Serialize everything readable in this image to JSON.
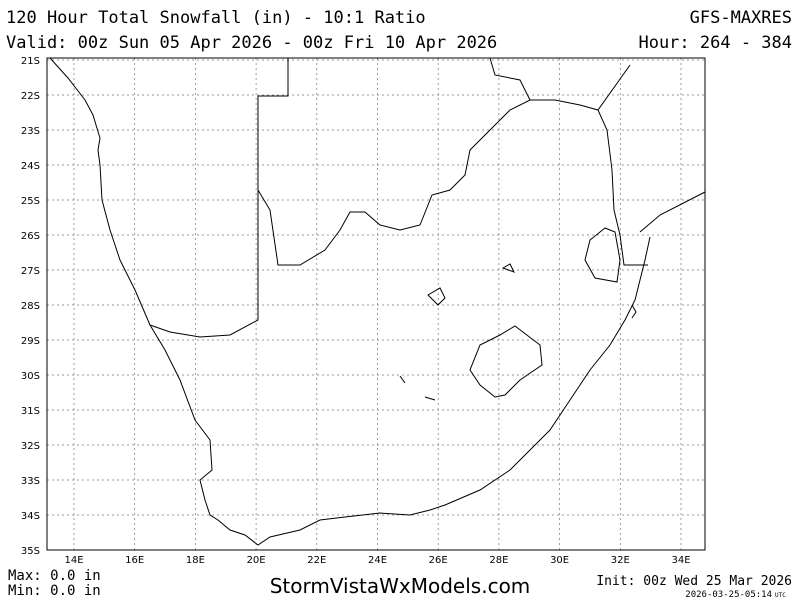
{
  "header": {
    "title": "120 Hour Total Snowfall (in) - 10:1 Ratio",
    "model": "GFS-MAXRES",
    "valid": "Valid: 00z Sun 05 Apr 2026 - 00z Fri 10 Apr 2026",
    "hour": "Hour: 264 - 384"
  },
  "map": {
    "lat_labels": [
      "21S",
      "22S",
      "23S",
      "24S",
      "25S",
      "26S",
      "27S",
      "28S",
      "29S",
      "30S",
      "31S",
      "32S",
      "33S",
      "34S",
      "35S"
    ],
    "lon_labels": [
      "14E",
      "16E",
      "18E",
      "20E",
      "22E",
      "24E",
      "26E",
      "28E",
      "30E",
      "32E",
      "34E"
    ]
  },
  "footer": {
    "max": "Max: 0.0 in",
    "min": "Min: 0.0 in",
    "site": "StormVistaWxModels.com",
    "init": "Init: 00z Wed 25 Mar 2026",
    "timestamp": "2026-03-25-05:14",
    "timestamp_unit": "UTC"
  }
}
